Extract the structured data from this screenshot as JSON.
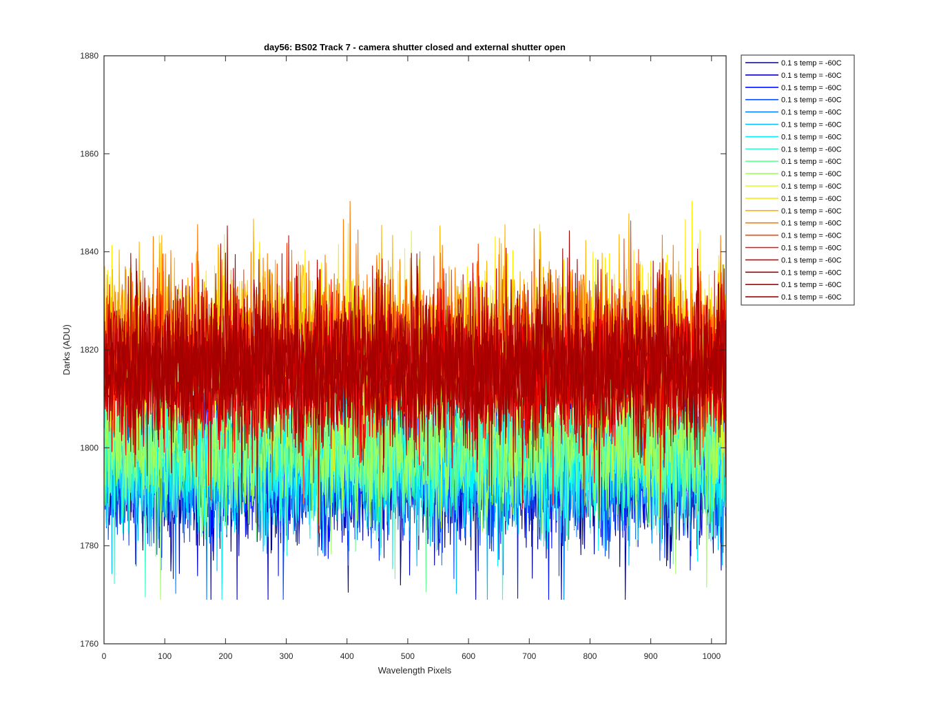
{
  "chart_data": {
    "type": "line",
    "title": "day56: BS02  Track 7 - camera shutter closed and external shutter open",
    "xlabel": "Wavelength Pixels",
    "ylabel": "Darks (ADU)",
    "xlim": [
      0,
      1024
    ],
    "ylim": [
      1760,
      1880
    ],
    "xticks": [
      "0",
      "100",
      "200",
      "300",
      "400",
      "500",
      "600",
      "700",
      "800",
      "900",
      "1000"
    ],
    "xtick_values": [
      0,
      100,
      200,
      300,
      400,
      500,
      600,
      700,
      800,
      900,
      1000
    ],
    "yticks": [
      "1760",
      "1780",
      "1800",
      "1820",
      "1840",
      "1860",
      "1880"
    ],
    "ytick_values": [
      1760,
      1780,
      1800,
      1820,
      1840,
      1860,
      1880
    ],
    "grid": false,
    "legend_position": "outside-top-right",
    "noise_amplitude": 11,
    "series": [
      {
        "name": "0.1 s temp = -60C",
        "color": "#00008f",
        "mean": 1794
      },
      {
        "name": "0.1 s temp = -60C",
        "color": "#0000c9",
        "mean": 1795
      },
      {
        "name": "0.1 s temp = -60C",
        "color": "#0010ff",
        "mean": 1796
      },
      {
        "name": "0.1 s temp = -60C",
        "color": "#0049ff",
        "mean": 1796
      },
      {
        "name": "0.1 s temp = -60C",
        "color": "#0083ff",
        "mean": 1797
      },
      {
        "name": "0.1 s temp = -60C",
        "color": "#00bcff",
        "mean": 1797
      },
      {
        "name": "0.1 s temp = -60C",
        "color": "#00f6ff",
        "mean": 1798
      },
      {
        "name": "0.1 s temp = -60C",
        "color": "#2effd0",
        "mean": 1799
      },
      {
        "name": "0.1 s temp = -60C",
        "color": "#68ff97",
        "mean": 1800
      },
      {
        "name": "0.1 s temp = -60C",
        "color": "#a1ff5e",
        "mean": 1801
      },
      {
        "name": "0.1 s temp = -60C",
        "color": "#dbff24",
        "mean": 1816
      },
      {
        "name": "0.1 s temp = -60C",
        "color": "#ffeb00",
        "mean": 1822
      },
      {
        "name": "0.1 s temp = -60C",
        "color": "#ffb200",
        "mean": 1824
      },
      {
        "name": "0.1 s temp = -60C",
        "color": "#ff7800",
        "mean": 1822
      },
      {
        "name": "0.1 s temp = -60C",
        "color": "#ff3f00",
        "mean": 1818
      },
      {
        "name": "0.1 s temp = -60C",
        "color": "#ff0500",
        "mean": 1815
      },
      {
        "name": "0.1 s temp = -60C",
        "color": "#d50000",
        "mean": 1815
      },
      {
        "name": "0.1 s temp = -60C",
        "color": "#9b0000",
        "mean": 1816
      },
      {
        "name": "0.1 s temp = -60C",
        "color": "#b20000",
        "mean": 1817
      },
      {
        "name": "0.1 s temp = -60C",
        "color": "#a60000",
        "mean": 1817
      }
    ]
  }
}
